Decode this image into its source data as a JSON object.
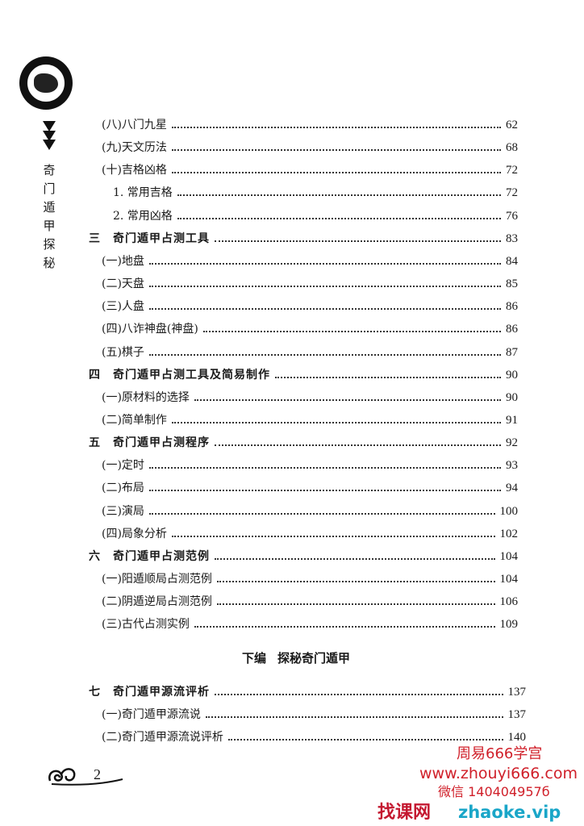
{
  "sidebar": {
    "book_title": [
      "奇",
      "门",
      "遁",
      "甲",
      "探",
      "秘"
    ]
  },
  "toc_upper": [
    {
      "level": "section",
      "label": "(八)八门九星",
      "page": "62"
    },
    {
      "level": "section",
      "label": "(九)天文历法",
      "page": "68"
    },
    {
      "level": "section",
      "label": "(十)吉格凶格",
      "page": "72"
    },
    {
      "level": "sub",
      "label": "1. 常用吉格",
      "page": "72"
    },
    {
      "level": "sub",
      "label": "2. 常用凶格",
      "page": "76"
    },
    {
      "level": "chapter",
      "label": "三　奇门遁甲占测工具",
      "page": "83"
    },
    {
      "level": "section",
      "label": "(一)地盘",
      "page": "84"
    },
    {
      "level": "section",
      "label": "(二)天盘",
      "page": "85"
    },
    {
      "level": "section",
      "label": "(三)人盘",
      "page": "86"
    },
    {
      "level": "section",
      "label": "(四)八诈神盘(神盘)",
      "page": "86"
    },
    {
      "level": "section",
      "label": "(五)棋子",
      "page": "87"
    },
    {
      "level": "chapter",
      "label": "四　奇门遁甲占测工具及简易制作",
      "page": "90"
    },
    {
      "level": "section",
      "label": "(一)原材料的选择",
      "page": "90"
    },
    {
      "level": "section",
      "label": "(二)简单制作",
      "page": "91"
    },
    {
      "level": "chapter",
      "label": "五　奇门遁甲占测程序",
      "page": "92"
    },
    {
      "level": "section",
      "label": "(一)定时",
      "page": "93"
    },
    {
      "level": "section",
      "label": "(二)布局",
      "page": "94"
    },
    {
      "level": "section",
      "label": "(三)演局",
      "page": "100"
    },
    {
      "level": "section",
      "label": "(四)局象分析",
      "page": "102"
    },
    {
      "level": "chapter",
      "label": "六　奇门遁甲占测范例",
      "page": "104"
    },
    {
      "level": "section",
      "label": "(一)阳遁顺局占测范例",
      "page": "104"
    },
    {
      "level": "section",
      "label": "(二)阴遁逆局占测范例",
      "page": "106"
    },
    {
      "level": "section",
      "label": "(三)古代占测实例",
      "page": "109"
    }
  ],
  "part": {
    "name": "下编",
    "title": "探秘奇门遁甲"
  },
  "toc_lower": [
    {
      "level": "chapter",
      "label": "七　奇门遁甲源流评析",
      "page": "137"
    },
    {
      "level": "section",
      "label": "(一)奇门遁甲源流说",
      "page": "137"
    },
    {
      "level": "section",
      "label": "(二)奇门遁甲源流说评析",
      "page": "140"
    }
  ],
  "page_number": "2",
  "watermark": {
    "line1": "周易666学宫",
    "line2": "www.zhouyi666.com",
    "line3": "微信 140404957б",
    "brand_cn": "找课网",
    "brand_en": "zhaoke.vip"
  }
}
